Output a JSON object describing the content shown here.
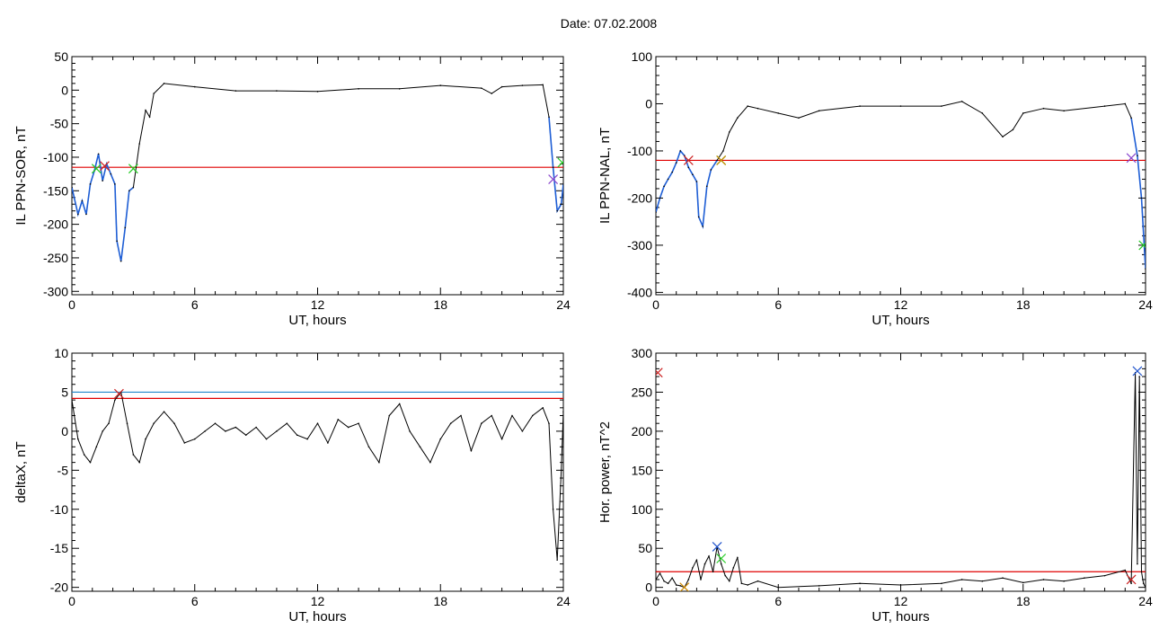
{
  "page_title": "Date:  07.02.2008",
  "chart_data": [
    {
      "type": "line",
      "title": "",
      "xlabel": "UT, hours",
      "ylabel": "IL PPN-SOR, nT",
      "xlim": [
        0,
        24
      ],
      "ylim": [
        -305,
        50
      ],
      "xticks": [
        0,
        6,
        12,
        18,
        24
      ],
      "yticks": [
        50,
        0,
        -50,
        -100,
        -150,
        -200,
        -250,
        -300
      ],
      "x": [
        0,
        0.3,
        0.5,
        0.7,
        0.9,
        1.1,
        1.3,
        1.5,
        1.7,
        1.9,
        2.1,
        2.2,
        2.4,
        2.6,
        2.8,
        3.0,
        3.3,
        3.6,
        3.8,
        4.0,
        4.5,
        6,
        8,
        10,
        12,
        14,
        16,
        18,
        20,
        20.5,
        21,
        22,
        23,
        23.3,
        23.5,
        23.7,
        23.9,
        24
      ],
      "series": [
        {
          "values": [
            -145,
            -185,
            -165,
            -185,
            -140,
            -120,
            -95,
            -135,
            -110,
            -125,
            -140,
            -225,
            -255,
            -205,
            -150,
            -145,
            -80,
            -30,
            -40,
            -5,
            10,
            5,
            -1,
            -1,
            -2,
            2,
            2,
            7,
            3,
            -5,
            5,
            7,
            8,
            -40,
            -115,
            -180,
            -170,
            -140
          ],
          "color": "#000000"
        }
      ],
      "blue_segments": [
        [
          0,
          3.05
        ],
        [
          23.3,
          24
        ]
      ],
      "hlines": [
        {
          "y": -115,
          "color": "#e00000"
        }
      ],
      "markers": [
        {
          "x": 1.2,
          "y": -117,
          "color": "#22cc22"
        },
        {
          "x": 1.6,
          "y": -113,
          "color": "#cc2222"
        },
        {
          "x": 3.0,
          "y": -117,
          "color": "#22cc22"
        },
        {
          "x": 23.5,
          "y": -133,
          "color": "#8844cc"
        },
        {
          "x": 23.95,
          "y": -108,
          "color": "#22cc22"
        }
      ]
    },
    {
      "type": "line",
      "title": "",
      "xlabel": "UT, hours",
      "ylabel": "IL PPN-NAL, nT",
      "xlim": [
        0,
        24
      ],
      "ylim": [
        -405,
        100
      ],
      "xticks": [
        0,
        6,
        12,
        18,
        24
      ],
      "yticks": [
        100,
        0,
        -100,
        -200,
        -300,
        -400
      ],
      "x": [
        0,
        0.2,
        0.4,
        0.6,
        0.8,
        1.0,
        1.2,
        1.4,
        1.6,
        1.8,
        2.0,
        2.1,
        2.3,
        2.5,
        2.7,
        3.0,
        3.3,
        3.6,
        4.0,
        4.5,
        5,
        6,
        7,
        8,
        10,
        12,
        14,
        15,
        16,
        17,
        17.5,
        18,
        19,
        20,
        22,
        23,
        23.3,
        23.6,
        23.8,
        24
      ],
      "series": [
        {
          "values": [
            -230,
            -200,
            -175,
            -160,
            -145,
            -125,
            -100,
            -110,
            -135,
            -150,
            -165,
            -240,
            -260,
            -175,
            -140,
            -120,
            -100,
            -60,
            -30,
            -5,
            -10,
            -20,
            -30,
            -15,
            -5,
            -5,
            -5,
            5,
            -20,
            -70,
            -55,
            -20,
            -10,
            -15,
            -5,
            0,
            -30,
            -110,
            -200,
            -350
          ],
          "color": "#000000"
        }
      ],
      "blue_segments": [
        [
          0,
          3.2
        ],
        [
          23.3,
          24
        ]
      ],
      "hlines": [
        {
          "y": -120,
          "color": "#e00000"
        }
      ],
      "markers": [
        {
          "x": 1.6,
          "y": -120,
          "color": "#cc2222"
        },
        {
          "x": 3.2,
          "y": -120,
          "color": "#22cc22"
        },
        {
          "x": 3.2,
          "y": -120,
          "color": "#cc8800"
        },
        {
          "x": 23.3,
          "y": -115,
          "color": "#8844cc"
        },
        {
          "x": 23.9,
          "y": -300,
          "color": "#22cc22"
        }
      ]
    },
    {
      "type": "line",
      "title": "",
      "xlabel": "UT, hours",
      "ylabel": "deltaX, nT",
      "xlim": [
        0,
        24
      ],
      "ylim": [
        -20.5,
        10
      ],
      "xticks": [
        0,
        6,
        12,
        18,
        24
      ],
      "yticks": [
        10,
        5,
        0,
        -5,
        -10,
        -15,
        -20
      ],
      "x": [
        0,
        0.3,
        0.6,
        0.9,
        1.2,
        1.5,
        1.8,
        2.1,
        2.4,
        2.7,
        3.0,
        3.3,
        3.6,
        4.0,
        4.5,
        5.0,
        5.5,
        6.0,
        6.5,
        7.0,
        7.5,
        8.0,
        8.5,
        9.0,
        9.5,
        10.0,
        10.5,
        11.0,
        11.5,
        12.0,
        12.5,
        13.0,
        13.5,
        14.0,
        14.5,
        15.0,
        15.5,
        16.0,
        16.5,
        17.0,
        17.5,
        18.0,
        18.5,
        19.0,
        19.5,
        20.0,
        20.5,
        21.0,
        21.5,
        22.0,
        22.5,
        23.0,
        23.3,
        23.5,
        23.7,
        23.9,
        24
      ],
      "series": [
        {
          "values": [
            4,
            -1,
            -3,
            -4,
            -2,
            0,
            1,
            4,
            5,
            1,
            -3,
            -4,
            -1,
            1,
            2.5,
            1,
            -1.5,
            -1,
            0,
            1,
            0,
            0.5,
            -0.5,
            0.5,
            -1,
            0,
            1,
            -0.5,
            -1,
            1,
            -1.5,
            1.5,
            0.5,
            1,
            -2,
            -4,
            2,
            3.5,
            0,
            -2,
            -4,
            -1,
            1,
            2,
            -2.5,
            1,
            2,
            -1,
            2,
            0,
            2,
            3,
            1,
            -10,
            -16.5,
            -5,
            2.5
          ],
          "color": "#000000"
        }
      ],
      "hlines": [
        {
          "y": 5,
          "color": "#2288cc"
        },
        {
          "y": 4.2,
          "color": "#e00000"
        }
      ],
      "markers": [
        {
          "x": 2.3,
          "y": 4.8,
          "color": "#cc2222"
        }
      ]
    },
    {
      "type": "line",
      "title": "",
      "xlabel": "UT, hours",
      "ylabel": "Hor. power, nT^2",
      "xlim": [
        0,
        24
      ],
      "ylim": [
        -5,
        300
      ],
      "xticks": [
        0,
        6,
        12,
        18,
        24
      ],
      "yticks": [
        300,
        250,
        200,
        150,
        100,
        50,
        0
      ],
      "x": [
        0,
        0.2,
        0.4,
        0.6,
        0.8,
        1.0,
        1.2,
        1.4,
        1.6,
        1.8,
        2.0,
        2.2,
        2.4,
        2.6,
        2.8,
        3.0,
        3.2,
        3.4,
        3.6,
        3.8,
        4.0,
        4.2,
        4.5,
        5,
        6,
        8,
        10,
        12,
        14,
        15,
        16,
        17,
        18,
        19,
        20,
        21,
        22,
        23,
        23.3,
        23.5,
        23.6,
        23.7,
        23.8,
        23.9,
        24
      ],
      "series": [
        {
          "values": [
            10,
            18,
            8,
            5,
            12,
            3,
            2,
            0,
            10,
            25,
            35,
            10,
            30,
            40,
            20,
            52,
            30,
            15,
            8,
            25,
            38,
            5,
            3,
            8,
            0,
            2,
            5,
            3,
            5,
            10,
            8,
            12,
            6,
            10,
            8,
            12,
            15,
            22,
            5,
            275,
            30,
            270,
            20,
            5,
            0
          ],
          "color": "#000000"
        }
      ],
      "hlines": [
        {
          "y": 20,
          "color": "#e00000"
        }
      ],
      "markers": [
        {
          "x": 0.1,
          "y": 275,
          "color": "#cc2222"
        },
        {
          "x": 1.4,
          "y": 0,
          "color": "#cc8800"
        },
        {
          "x": 3.0,
          "y": 52,
          "color": "#2255cc"
        },
        {
          "x": 3.2,
          "y": 37,
          "color": "#22cc22"
        },
        {
          "x": 23.6,
          "y": 277,
          "color": "#2255cc"
        },
        {
          "x": 23.3,
          "y": 10,
          "color": "#cc2222"
        }
      ]
    }
  ]
}
